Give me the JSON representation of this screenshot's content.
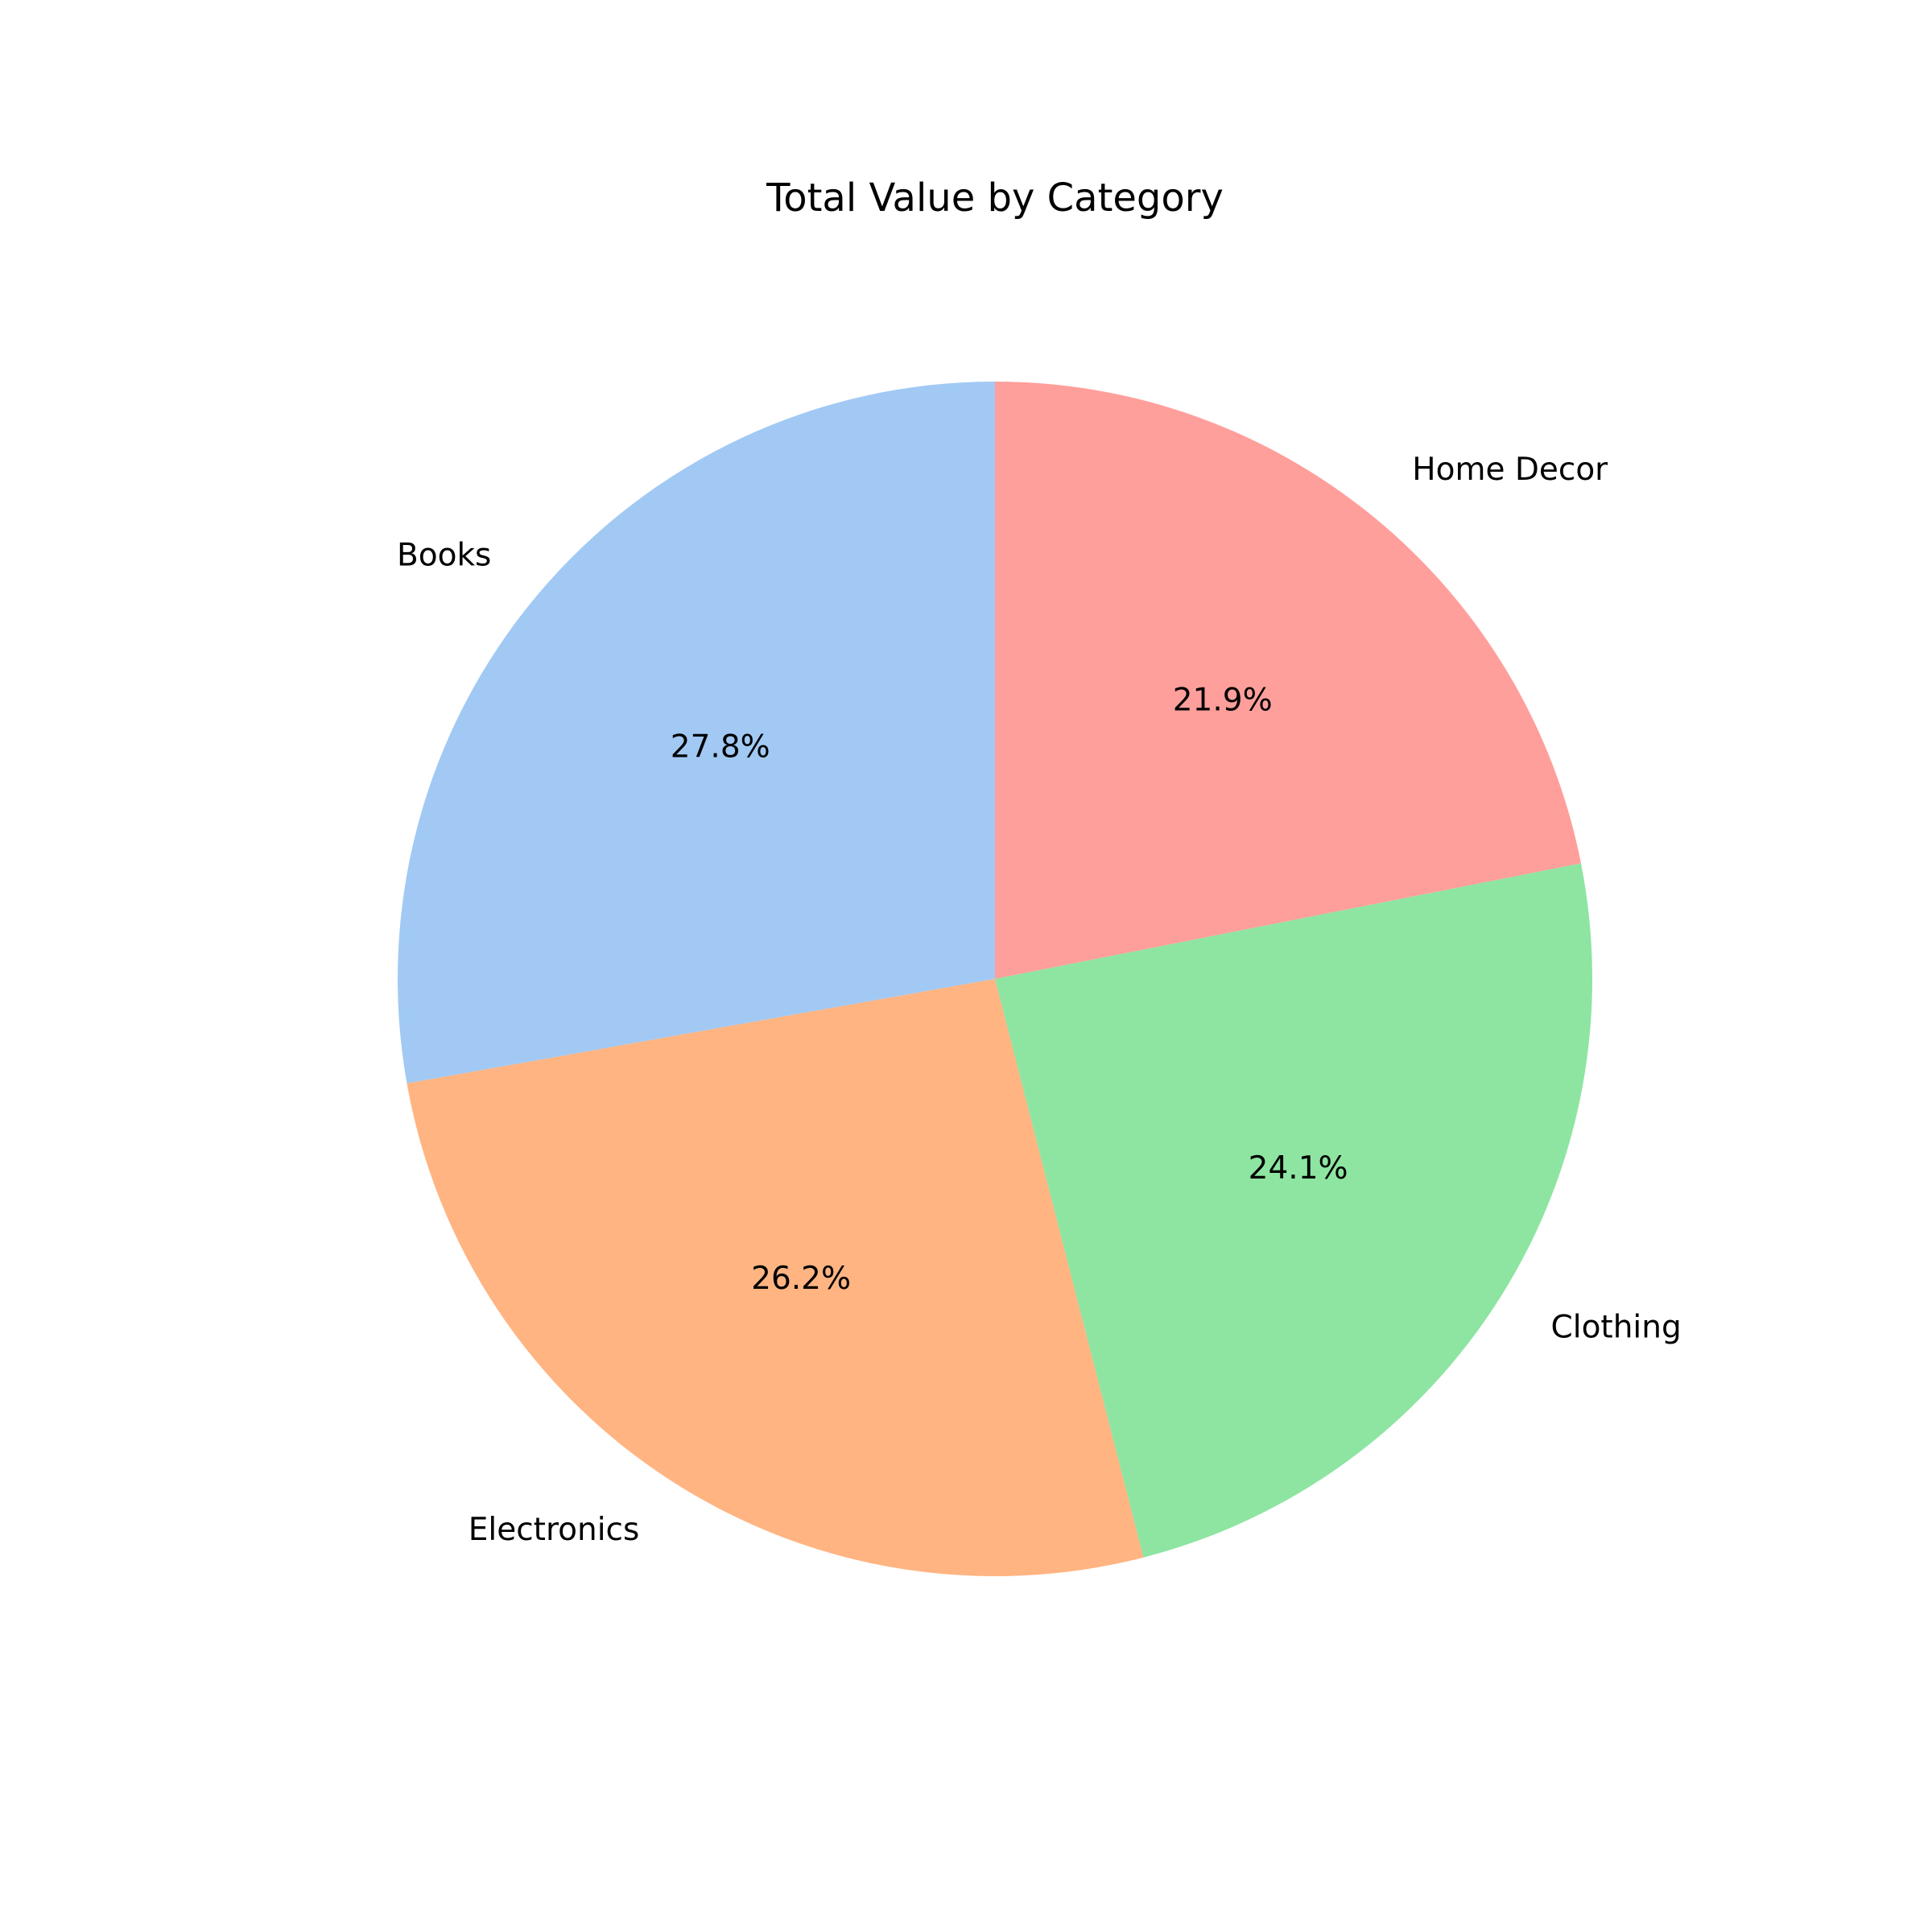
{
  "chart_data": {
    "type": "pie",
    "title": "Total Value by Category",
    "categories": [
      "Books",
      "Electronics",
      "Clothing",
      "Home Decor"
    ],
    "values": [
      27.8,
      26.2,
      24.1,
      21.9
    ],
    "percent_labels": [
      "27.8%",
      "26.2%",
      "24.1%",
      "21.9%"
    ],
    "colors": [
      "#a1c9f4",
      "#ffb482",
      "#8de5a1",
      "#ff9f9b"
    ],
    "start_angle_degrees": 90,
    "direction": "counterclockwise",
    "legend": "none"
  }
}
